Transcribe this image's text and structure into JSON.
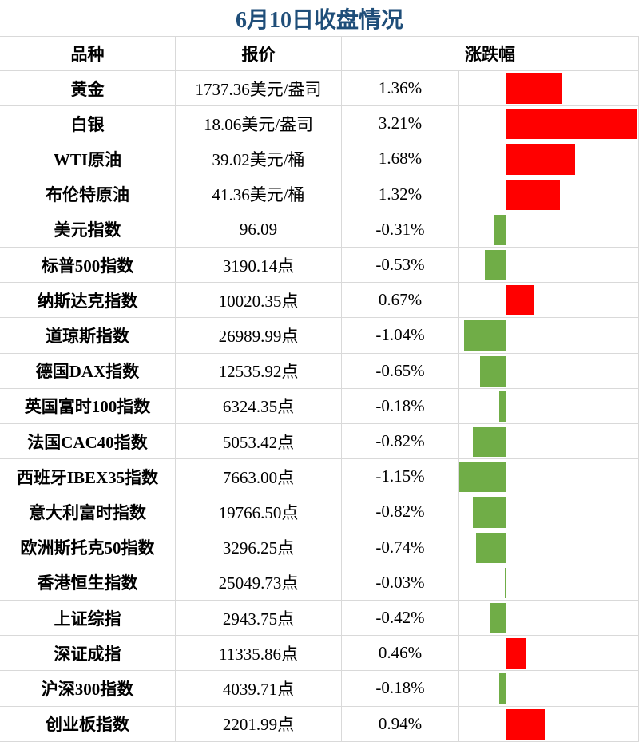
{
  "title": "6月10日收盘情况",
  "table": {
    "columns": [
      "品种",
      "报价",
      "涨跌幅"
    ],
    "rows": [
      [
        "黄金",
        "1737.36美元/盎司"
      ],
      [
        "白银",
        "18.06美元/盎司"
      ],
      [
        "WTI原油",
        "39.02美元/桶"
      ],
      [
        "布伦特原油",
        "41.36美元/桶"
      ],
      [
        "美元指数",
        "96.09"
      ],
      [
        "标普500指数",
        "3190.14点"
      ],
      [
        "纳斯达克指数",
        "10020.35点"
      ],
      [
        "道琼斯指数",
        "26989.99点"
      ],
      [
        "德国DAX指数",
        "12535.92点"
      ],
      [
        "英国富时100指数",
        "6324.35点"
      ],
      [
        "法国CAC40指数",
        "5053.42点"
      ],
      [
        "西班牙IBEX35指数",
        "7663.00点"
      ],
      [
        "意大利富时指数",
        "19766.50点"
      ],
      [
        "欧洲斯托克50指数",
        "3296.25点"
      ],
      [
        "香港恒生指数",
        "25049.73点"
      ],
      [
        "上证综指",
        "2943.75点"
      ],
      [
        "深证成指",
        "11335.86点"
      ],
      [
        "沪深300指数",
        "4039.71点"
      ],
      [
        "创业板指数",
        "2201.99点"
      ]
    ],
    "change": {
      "values": [
        1.36,
        3.21,
        1.68,
        1.32,
        -0.31,
        -0.53,
        0.67,
        -1.04,
        -0.65,
        -0.18,
        -0.82,
        -1.15,
        -0.82,
        -0.74,
        -0.03,
        -0.42,
        0.46,
        -0.18,
        0.94
      ],
      "value_labels": [
        "1.36%",
        "3.21%",
        "1.68%",
        "1.32%",
        "-0.31%",
        "-0.53%",
        "0.67%",
        "-1.04%",
        "-0.65%",
        "-0.18%",
        "-0.82%",
        "-1.15%",
        "-0.82%",
        "-0.74%",
        "-0.03%",
        "-0.42%",
        "0.46%",
        "-0.18%",
        "0.94%"
      ],
      "positive_color": "#ff0000",
      "negative_color": "#70ad47"
    }
  }
}
